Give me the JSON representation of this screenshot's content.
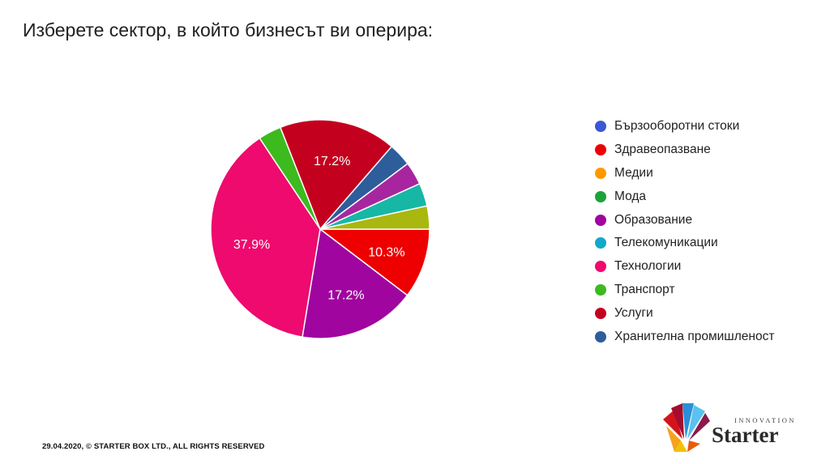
{
  "title": "Изберете сектор, в който бизнесът ви оперира:",
  "footer": "29.04.2020, © STARTER BOX LTD., ALL RIGHTS RESERVED",
  "logo": {
    "text": "Starter",
    "subtitle": "INNOVATION"
  },
  "chart_data": {
    "type": "pie",
    "title": "",
    "legend_position": "right",
    "slices": [
      {
        "name": "Бързооборотни стоки",
        "value": 0,
        "color": "#3b57d6"
      },
      {
        "name": "Здравеопазване",
        "value": 10.3,
        "color": "#ee0000",
        "label": "10.3%"
      },
      {
        "name": "Медии",
        "value": 0,
        "color": "#ff9800"
      },
      {
        "name": "Мода",
        "value": 0,
        "color": "#1aa33a"
      },
      {
        "name": "Образование",
        "value": 17.2,
        "color": "#a0059f",
        "label": "17.2%"
      },
      {
        "name": "Телекомуникации",
        "value": 0,
        "color": "#12a8c8"
      },
      {
        "name": "Технологии",
        "value": 37.9,
        "color": "#ee0a6e",
        "label": "37.9%"
      },
      {
        "name": "Транспорт",
        "value": 3.4,
        "color": "#3cba1e"
      },
      {
        "name": "Услуги",
        "value": 17.2,
        "color": "#c4001f",
        "label": "17.2%"
      },
      {
        "name": "Хранителна промишленост",
        "value": 3.4,
        "color": "#2e5d9c"
      },
      {
        "name": "",
        "value": 3.4,
        "color": "#a7269f"
      },
      {
        "name": "",
        "value": 3.4,
        "color": "#17b7a5"
      },
      {
        "name": "",
        "value": 3.4,
        "color": "#a9b70f"
      }
    ],
    "start_angle_deg": 90,
    "direction": "clockwise"
  }
}
